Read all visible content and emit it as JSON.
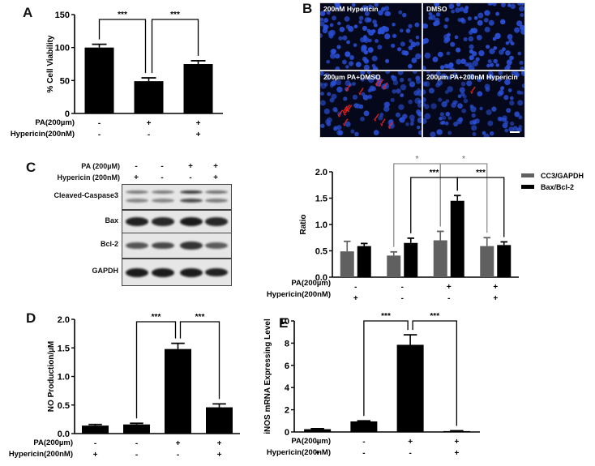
{
  "panels": {
    "A": {
      "label": "A"
    },
    "B": {
      "label": "B"
    },
    "C": {
      "label": "C"
    },
    "D": {
      "label": "D"
    },
    "E": {
      "label": "E"
    }
  },
  "treatments": {
    "pa_label": "PA(200µm)",
    "hyp_label": "Hypericin(200nM)"
  },
  "microscopy": {
    "tiles": [
      {
        "caption": "200nM Hypericin",
        "arrows": 0
      },
      {
        "caption": "DMSO",
        "arrows": 0
      },
      {
        "caption": "200µm PA+DMSO",
        "arrows": 14
      },
      {
        "caption": "200µm PA+200nM Hypericin",
        "arrows": 1
      }
    ],
    "nucleus_color": "#2a4fd6",
    "arrow_color": "#e02020"
  },
  "western_blot": {
    "header": {
      "pa_label": "PA  (200µM)",
      "hyp_label": "Hypericin (200nM)"
    },
    "pa_signs": [
      "-",
      "-",
      "+",
      "+"
    ],
    "hyp_signs": [
      "+",
      "-",
      "-",
      "+"
    ],
    "rows": [
      {
        "name": "Cleaved-Caspase3",
        "bands": [
          0.5,
          0.5,
          0.8,
          0.55
        ],
        "double": true
      },
      {
        "name": "Bax",
        "bands": [
          0.95,
          0.9,
          1.0,
          0.9
        ],
        "double": false
      },
      {
        "name": "Bcl-2",
        "bands": [
          0.55,
          0.65,
          0.8,
          0.5
        ],
        "double": false
      },
      {
        "name": "GAPDH",
        "bands": [
          1.0,
          1.0,
          1.0,
          0.95
        ],
        "double": false
      }
    ]
  },
  "chart_data": [
    {
      "id": "A",
      "type": "bar",
      "title": "",
      "ylabel": "% Cell Viability",
      "xlabel": "",
      "ylim": [
        0,
        150
      ],
      "yticks": [
        0,
        50,
        100,
        150
      ],
      "grid": false,
      "categories": [
        "PA-/Hyp-",
        "PA+/Hyp-",
        "PA+/Hyp+"
      ],
      "pa_signs": [
        "-",
        "+",
        "+"
      ],
      "hyp_signs": [
        "-",
        "-",
        "+"
      ],
      "values": [
        100,
        49,
        75
      ],
      "errors": [
        5,
        5,
        5
      ],
      "colors": [
        "#000000",
        "#000000",
        "#000000"
      ],
      "annotations": [
        {
          "from": 0,
          "to": 1,
          "label": "***"
        },
        {
          "from": 1,
          "to": 2,
          "label": "***"
        }
      ]
    },
    {
      "id": "C",
      "type": "bar",
      "title": "",
      "ylabel": "Ratio",
      "xlabel": "",
      "ylim": [
        0,
        2.0
      ],
      "yticks": [
        0.0,
        0.5,
        1.0,
        1.5,
        2.0
      ],
      "grid": false,
      "legend_position": "top-right",
      "categories": [
        "PA-/Hyp+",
        "PA-/Hyp-",
        "PA+/Hyp-",
        "PA+/Hyp+"
      ],
      "pa_signs": [
        "-",
        "-",
        "+",
        "+"
      ],
      "hyp_signs": [
        "+",
        "-",
        "-",
        "+"
      ],
      "series": [
        {
          "name": "CC3/GAPDH",
          "color": "#606060",
          "values": [
            0.49,
            0.41,
            0.7,
            0.59
          ],
          "errors": [
            0.19,
            0.07,
            0.17,
            0.16
          ]
        },
        {
          "name": "Bax/Bcl-2",
          "color": "#000000",
          "values": [
            0.59,
            0.65,
            1.45,
            0.61
          ],
          "errors": [
            0.05,
            0.09,
            0.1,
            0.06
          ]
        }
      ],
      "annotations": [
        {
          "series": 0,
          "from": 1,
          "to": 2,
          "label": "*",
          "color": "#909090"
        },
        {
          "series": 0,
          "from": 2,
          "to": 3,
          "label": "*",
          "color": "#909090"
        },
        {
          "series": 1,
          "from": 1,
          "to": 2,
          "label": "***",
          "color": "#000000"
        },
        {
          "series": 1,
          "from": 2,
          "to": 3,
          "label": "***",
          "color": "#000000"
        }
      ]
    },
    {
      "id": "D",
      "type": "bar",
      "title": "",
      "ylabel": "NO Production/µM",
      "xlabel": "",
      "ylim": [
        0,
        2.0
      ],
      "yticks": [
        0.0,
        0.5,
        1.0,
        1.5,
        2.0
      ],
      "grid": false,
      "categories": [
        "PA-/Hyp+",
        "PA-/Hyp-",
        "PA+/Hyp-",
        "PA+/Hyp+"
      ],
      "pa_signs": [
        "-",
        "-",
        "+",
        "+"
      ],
      "hyp_signs": [
        "+",
        "-",
        "-",
        "+"
      ],
      "values": [
        0.14,
        0.16,
        1.48,
        0.46
      ],
      "errors": [
        0.02,
        0.02,
        0.1,
        0.06
      ],
      "colors": [
        "#000000",
        "#000000",
        "#000000",
        "#000000"
      ],
      "annotations": [
        {
          "from": 1,
          "to": 2,
          "label": "***"
        },
        {
          "from": 2,
          "to": 3,
          "label": "***"
        }
      ]
    },
    {
      "id": "E",
      "type": "bar",
      "title": "",
      "ylabel": "iNOS mRNA Expressing Level",
      "xlabel": "",
      "ylim": [
        0,
        10
      ],
      "yticks": [
        0,
        2,
        4,
        6,
        8,
        10
      ],
      "grid": false,
      "categories": [
        "PA-/Hyp+",
        "PA-/Hyp-",
        "PA+/Hyp-",
        "PA+/Hyp+"
      ],
      "pa_signs": [
        "-",
        "-",
        "+",
        "+"
      ],
      "hyp_signs": [
        "+",
        "-",
        "-",
        "+"
      ],
      "values": [
        0.25,
        0.95,
        7.85,
        0.08
      ],
      "errors": [
        0.05,
        0.05,
        0.9,
        0.03
      ],
      "colors": [
        "#000000",
        "#000000",
        "#000000",
        "#000000"
      ],
      "annotations": [
        {
          "from": 1,
          "to": 2,
          "label": "***"
        },
        {
          "from": 2,
          "to": 3,
          "label": "***"
        }
      ]
    }
  ]
}
